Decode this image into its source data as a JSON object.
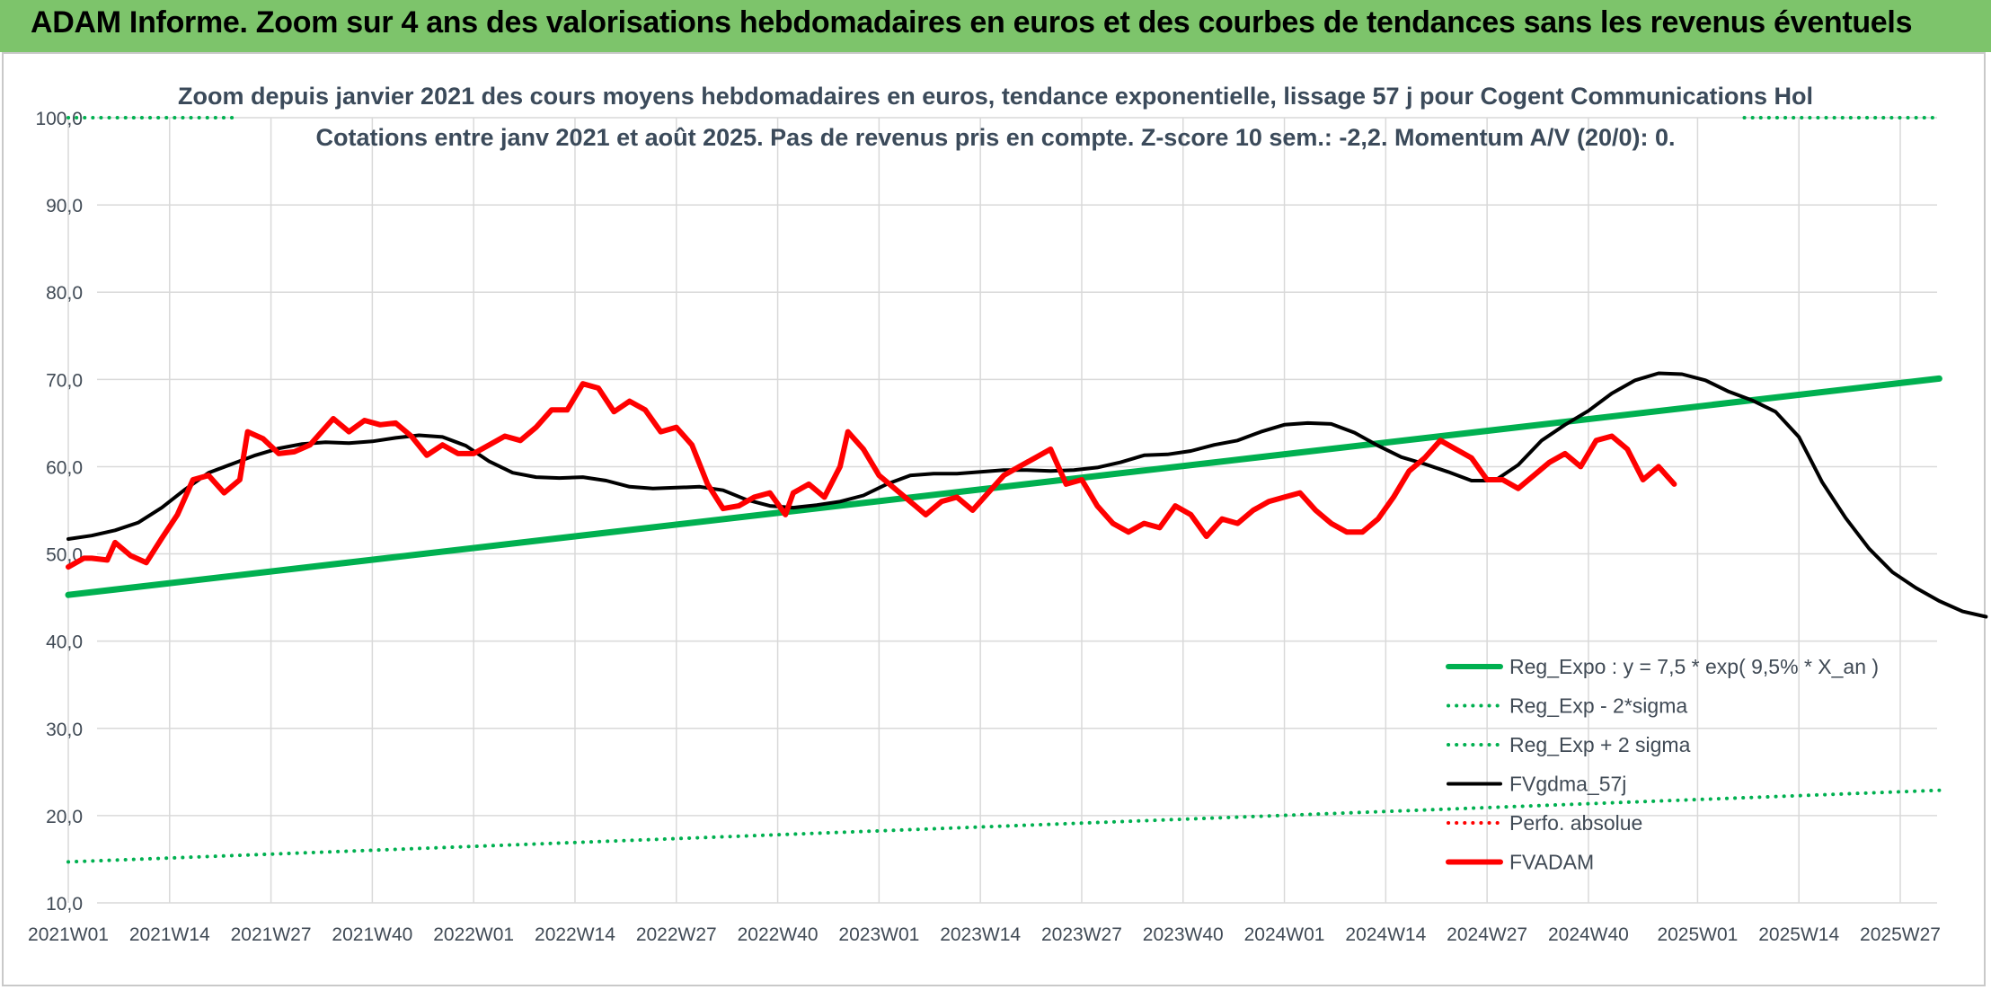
{
  "banner": {
    "title": "ADAM Informe. Zoom sur 4 ans des valorisations hebdomadaires en euros et des courbes de tendances sans les revenus éventuels"
  },
  "colors": {
    "banner": "#7dc46b",
    "reg_expo": "#00b050",
    "fvgdma": "#000000",
    "perfo": "#ff0000",
    "fvadam": "#ff0000",
    "grid": "#d9d9d9"
  },
  "chart_data": {
    "type": "line",
    "title": "Zoom depuis janvier 2021 des cours moyens hebdomadaires en euros, tendance exponentielle, lissage 57 j pour Cogent Communications Hol",
    "subtitle": "Cotations entre janv 2021 et août 2025. Pas de revenus pris en compte. Z-score 10 sem.: -2,2. Momentum A/V (20/0): 0.",
    "xlabel": "",
    "ylabel": "",
    "ylim": [
      10,
      100
    ],
    "yticks": [
      "10,0",
      "20,0",
      "30,0",
      "40,0",
      "50,0",
      "60,0",
      "70,0",
      "80,0",
      "90,0",
      "100,0"
    ],
    "grid": "horizontal and vertical",
    "legend_position": "bottom-right",
    "x_week_range": [
      0,
      240
    ],
    "x_tick_labels": [
      {
        "week": 0,
        "label": "2021W01"
      },
      {
        "week": 13,
        "label": "2021W14"
      },
      {
        "week": 26,
        "label": "2021W27"
      },
      {
        "week": 39,
        "label": "2021W40"
      },
      {
        "week": 52,
        "label": "2022W01"
      },
      {
        "week": 65,
        "label": "2022W14"
      },
      {
        "week": 78,
        "label": "2022W27"
      },
      {
        "week": 91,
        "label": "2022W40"
      },
      {
        "week": 104,
        "label": "2023W01"
      },
      {
        "week": 117,
        "label": "2023W14"
      },
      {
        "week": 130,
        "label": "2023W27"
      },
      {
        "week": 143,
        "label": "2023W40"
      },
      {
        "week": 156,
        "label": "2024W01"
      },
      {
        "week": 169,
        "label": "2024W14"
      },
      {
        "week": 182,
        "label": "2024W27"
      },
      {
        "week": 195,
        "label": "2024W40"
      },
      {
        "week": 209,
        "label": "2025W01"
      },
      {
        "week": 222,
        "label": "2025W14"
      },
      {
        "week": 235,
        "label": "2025W27"
      }
    ],
    "series": [
      {
        "name": "Reg_Expo : y = 7,5 * exp( 9,5% *  X_an )",
        "style": "solid",
        "color": "#00b050",
        "points": [
          [
            0,
            45.3
          ],
          [
            240,
            70.1
          ]
        ]
      },
      {
        "name": "Reg_Exp - 2*sigma",
        "style": "dotted",
        "color": "#00b050",
        "points": [
          [
            0,
            14.7
          ],
          [
            240,
            22.9
          ]
        ]
      },
      {
        "name": "Reg_Exp + 2 sigma",
        "style": "dotted",
        "color": "#00b050",
        "points": [
          [
            0,
            100.0
          ],
          [
            22,
            100.0
          ]
        ],
        "points_b": [
          [
            215,
            100.0
          ],
          [
            240,
            100.0
          ]
        ]
      },
      {
        "name": "FVgdma_57j",
        "style": "solid",
        "color": "#000000",
        "points": [
          [
            0,
            51.7
          ],
          [
            3,
            52.1
          ],
          [
            6,
            52.7
          ],
          [
            9,
            53.6
          ],
          [
            12,
            55.3
          ],
          [
            15,
            57.4
          ],
          [
            18,
            59.3
          ],
          [
            21,
            60.3
          ],
          [
            24,
            61.3
          ],
          [
            27,
            62.1
          ],
          [
            30,
            62.6
          ],
          [
            33,
            62.8
          ],
          [
            36,
            62.7
          ],
          [
            39,
            62.9
          ],
          [
            42,
            63.3
          ],
          [
            45,
            63.6
          ],
          [
            48,
            63.4
          ],
          [
            51,
            62.4
          ],
          [
            54,
            60.6
          ],
          [
            57,
            59.3
          ],
          [
            60,
            58.8
          ],
          [
            63,
            58.7
          ],
          [
            66,
            58.8
          ],
          [
            69,
            58.4
          ],
          [
            72,
            57.7
          ],
          [
            75,
            57.5
          ],
          [
            78,
            57.6
          ],
          [
            81,
            57.7
          ],
          [
            84,
            57.3
          ],
          [
            87,
            56.2
          ],
          [
            90,
            55.5
          ],
          [
            93,
            55.3
          ],
          [
            96,
            55.6
          ],
          [
            99,
            56.0
          ],
          [
            102,
            56.7
          ],
          [
            105,
            58.0
          ],
          [
            108,
            59.0
          ],
          [
            111,
            59.2
          ],
          [
            114,
            59.2
          ],
          [
            117,
            59.4
          ],
          [
            120,
            59.6
          ],
          [
            123,
            59.6
          ],
          [
            126,
            59.5
          ],
          [
            129,
            59.6
          ],
          [
            132,
            59.9
          ],
          [
            135,
            60.5
          ],
          [
            138,
            61.3
          ],
          [
            141,
            61.4
          ],
          [
            144,
            61.8
          ],
          [
            147,
            62.5
          ],
          [
            150,
            63.0
          ],
          [
            153,
            64.0
          ],
          [
            156,
            64.8
          ],
          [
            159,
            65.0
          ],
          [
            162,
            64.9
          ],
          [
            165,
            63.9
          ],
          [
            168,
            62.4
          ],
          [
            171,
            61.1
          ],
          [
            174,
            60.3
          ],
          [
            177,
            59.4
          ],
          [
            180,
            58.4
          ],
          [
            183,
            58.4
          ],
          [
            186,
            60.2
          ],
          [
            189,
            63.0
          ],
          [
            192,
            64.8
          ],
          [
            195,
            66.4
          ],
          [
            198,
            68.4
          ],
          [
            201,
            69.9
          ],
          [
            204,
            70.7
          ],
          [
            207,
            70.6
          ],
          [
            210,
            69.9
          ],
          [
            213,
            68.6
          ],
          [
            216,
            67.6
          ],
          [
            219,
            66.3
          ],
          [
            222,
            63.4
          ],
          [
            225,
            58.2
          ],
          [
            228,
            54.1
          ],
          [
            231,
            50.6
          ],
          [
            234,
            47.9
          ],
          [
            237,
            46.1
          ],
          [
            240,
            44.6
          ],
          [
            243,
            43.4
          ],
          [
            246,
            42.8
          ]
        ]
      },
      {
        "name": "Perfo. absolue",
        "style": "dotted",
        "color": "#ff0000",
        "points": []
      },
      {
        "name": "FVADAM",
        "style": "solid",
        "color": "#ff0000",
        "points": [
          [
            0,
            48.5
          ],
          [
            2,
            49.5
          ],
          [
            3,
            49.5
          ],
          [
            5,
            49.3
          ],
          [
            6,
            51.3
          ],
          [
            8,
            49.8
          ],
          [
            10,
            49.0
          ],
          [
            12,
            51.8
          ],
          [
            14,
            54.5
          ],
          [
            16,
            58.5
          ],
          [
            18,
            59.0
          ],
          [
            20,
            57.0
          ],
          [
            22,
            58.5
          ],
          [
            23,
            64.0
          ],
          [
            25,
            63.2
          ],
          [
            27,
            61.5
          ],
          [
            29,
            61.7
          ],
          [
            31,
            62.5
          ],
          [
            33,
            64.5
          ],
          [
            34,
            65.5
          ],
          [
            36,
            64.0
          ],
          [
            38,
            65.3
          ],
          [
            40,
            64.8
          ],
          [
            42,
            65.0
          ],
          [
            44,
            63.5
          ],
          [
            46,
            61.3
          ],
          [
            48,
            62.5
          ],
          [
            50,
            61.5
          ],
          [
            52,
            61.5
          ],
          [
            54,
            62.5
          ],
          [
            56,
            63.5
          ],
          [
            58,
            63.0
          ],
          [
            60,
            64.5
          ],
          [
            62,
            66.5
          ],
          [
            64,
            66.5
          ],
          [
            66,
            69.5
          ],
          [
            68,
            69.0
          ],
          [
            70,
            66.3
          ],
          [
            72,
            67.5
          ],
          [
            74,
            66.5
          ],
          [
            76,
            64.0
          ],
          [
            78,
            64.5
          ],
          [
            80,
            62.5
          ],
          [
            82,
            58.0
          ],
          [
            84,
            55.2
          ],
          [
            86,
            55.5
          ],
          [
            88,
            56.5
          ],
          [
            90,
            57.0
          ],
          [
            92,
            54.5
          ],
          [
            93,
            57.0
          ],
          [
            95,
            58.0
          ],
          [
            97,
            56.5
          ],
          [
            99,
            60.0
          ],
          [
            100,
            64.0
          ],
          [
            102,
            62.0
          ],
          [
            104,
            59.0
          ],
          [
            106,
            57.5
          ],
          [
            108,
            56.0
          ],
          [
            110,
            54.5
          ],
          [
            112,
            56.0
          ],
          [
            114,
            56.5
          ],
          [
            116,
            55.0
          ],
          [
            118,
            57.0
          ],
          [
            120,
            59.0
          ],
          [
            122,
            60.0
          ],
          [
            124,
            61.0
          ],
          [
            126,
            62.0
          ],
          [
            128,
            58.0
          ],
          [
            130,
            58.5
          ],
          [
            132,
            55.5
          ],
          [
            134,
            53.5
          ],
          [
            136,
            52.5
          ],
          [
            138,
            53.5
          ],
          [
            140,
            53.0
          ],
          [
            142,
            55.5
          ],
          [
            144,
            54.5
          ],
          [
            146,
            52.0
          ],
          [
            148,
            54.0
          ],
          [
            150,
            53.5
          ],
          [
            152,
            55.0
          ],
          [
            154,
            56.0
          ],
          [
            156,
            56.5
          ],
          [
            158,
            57.0
          ],
          [
            160,
            55.0
          ],
          [
            162,
            53.5
          ],
          [
            164,
            52.5
          ],
          [
            166,
            52.5
          ],
          [
            168,
            54.0
          ],
          [
            170,
            56.5
          ],
          [
            172,
            59.5
          ],
          [
            174,
            61.0
          ],
          [
            176,
            63.0
          ],
          [
            178,
            62.0
          ],
          [
            180,
            61.0
          ],
          [
            182,
            58.5
          ],
          [
            184,
            58.5
          ],
          [
            186,
            57.5
          ],
          [
            188,
            59.0
          ],
          [
            190,
            60.5
          ],
          [
            192,
            61.5
          ],
          [
            194,
            60.0
          ],
          [
            196,
            63.0
          ],
          [
            198,
            63.5
          ],
          [
            200,
            62.0
          ],
          [
            202,
            58.5
          ],
          [
            204,
            60.0
          ],
          [
            206,
            58.0
          ]
        ]
      }
    ]
  },
  "legend": [
    {
      "label": "Reg_Expo : y = 7,5 * exp( 9,5% *  X_an )",
      "style": "solid",
      "color": "#00b050"
    },
    {
      "label": "Reg_Exp - 2*sigma",
      "style": "dotted",
      "color": "#00b050"
    },
    {
      "label": "Reg_Exp + 2 sigma",
      "style": "dotted",
      "color": "#00b050"
    },
    {
      "label": "FVgdma_57j",
      "style": "solid",
      "color": "#000000"
    },
    {
      "label": "Perfo. absolue",
      "style": "dotted",
      "color": "#ff0000"
    },
    {
      "label": "FVADAM",
      "style": "solid",
      "color": "#ff0000"
    }
  ]
}
